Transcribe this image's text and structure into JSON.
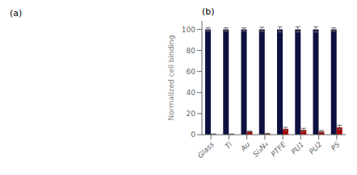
{
  "chart_data": {
    "type": "bar",
    "title": "(b)",
    "annotations": [
      "(a)"
    ],
    "ylabel": "Normalized cell binding",
    "categories": [
      "Glass",
      "Ti",
      "Au",
      "Si₃N₄",
      "PTFE",
      "PU1",
      "PU2",
      "PS"
    ],
    "series": [
      {
        "color": "#0d1040",
        "values": [
          100,
          100,
          100,
          100,
          100,
          100,
          100,
          100
        ],
        "errors": [
          1.5,
          1.5,
          1.5,
          2.0,
          2.5,
          2.5,
          2.5,
          1.5
        ]
      },
      {
        "color": "#aa0000",
        "values": [
          0.5,
          0.5,
          3.0,
          1.0,
          5.5,
          4.5,
          3.0,
          7.0
        ],
        "errors": [
          0.2,
          0.2,
          0.5,
          0.3,
          1.5,
          1.5,
          1.0,
          2.0
        ]
      }
    ],
    "ylim": [
      0,
      108
    ],
    "yticks": [
      0,
      20,
      40,
      60,
      80,
      100
    ],
    "grid": false
  }
}
